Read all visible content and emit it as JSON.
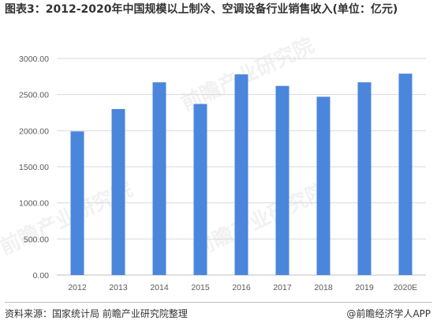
{
  "title": "图表3：2012-2020年中国规模以上制冷、空调设备行业销售收入(单位：亿元)",
  "footer": {
    "source": "资料来源：国家统计局 前瞻产业研究院整理",
    "credit": "@前瞻经济学人APP"
  },
  "watermark_text": "前瞻产业研究院",
  "colors": {
    "bar": "#4a86dc",
    "grid": "#d9d9d9",
    "axis": "#bfbfbf",
    "text": "#595959"
  },
  "chart_data": {
    "type": "bar",
    "title": "图表3：2012-2020年中国规模以上制冷、空调设备行业销售收入(单位：亿元)",
    "categories": [
      "2012",
      "2013",
      "2014",
      "2015",
      "2016",
      "2017",
      "2018",
      "2019",
      "2020E"
    ],
    "values": [
      1990,
      2300,
      2670,
      2370,
      2780,
      2620,
      2470,
      2670,
      2790
    ],
    "ylim": [
      0,
      3000
    ],
    "yticks": [
      0,
      500,
      1000,
      1500,
      2000,
      2500,
      3000
    ],
    "ytick_labels": [
      "0.00",
      "500.00",
      "1000.00",
      "1500.00",
      "2000.00",
      "2500.00",
      "3000.00"
    ],
    "xlabel": "",
    "ylabel": "",
    "grid": true,
    "legend": "none"
  }
}
